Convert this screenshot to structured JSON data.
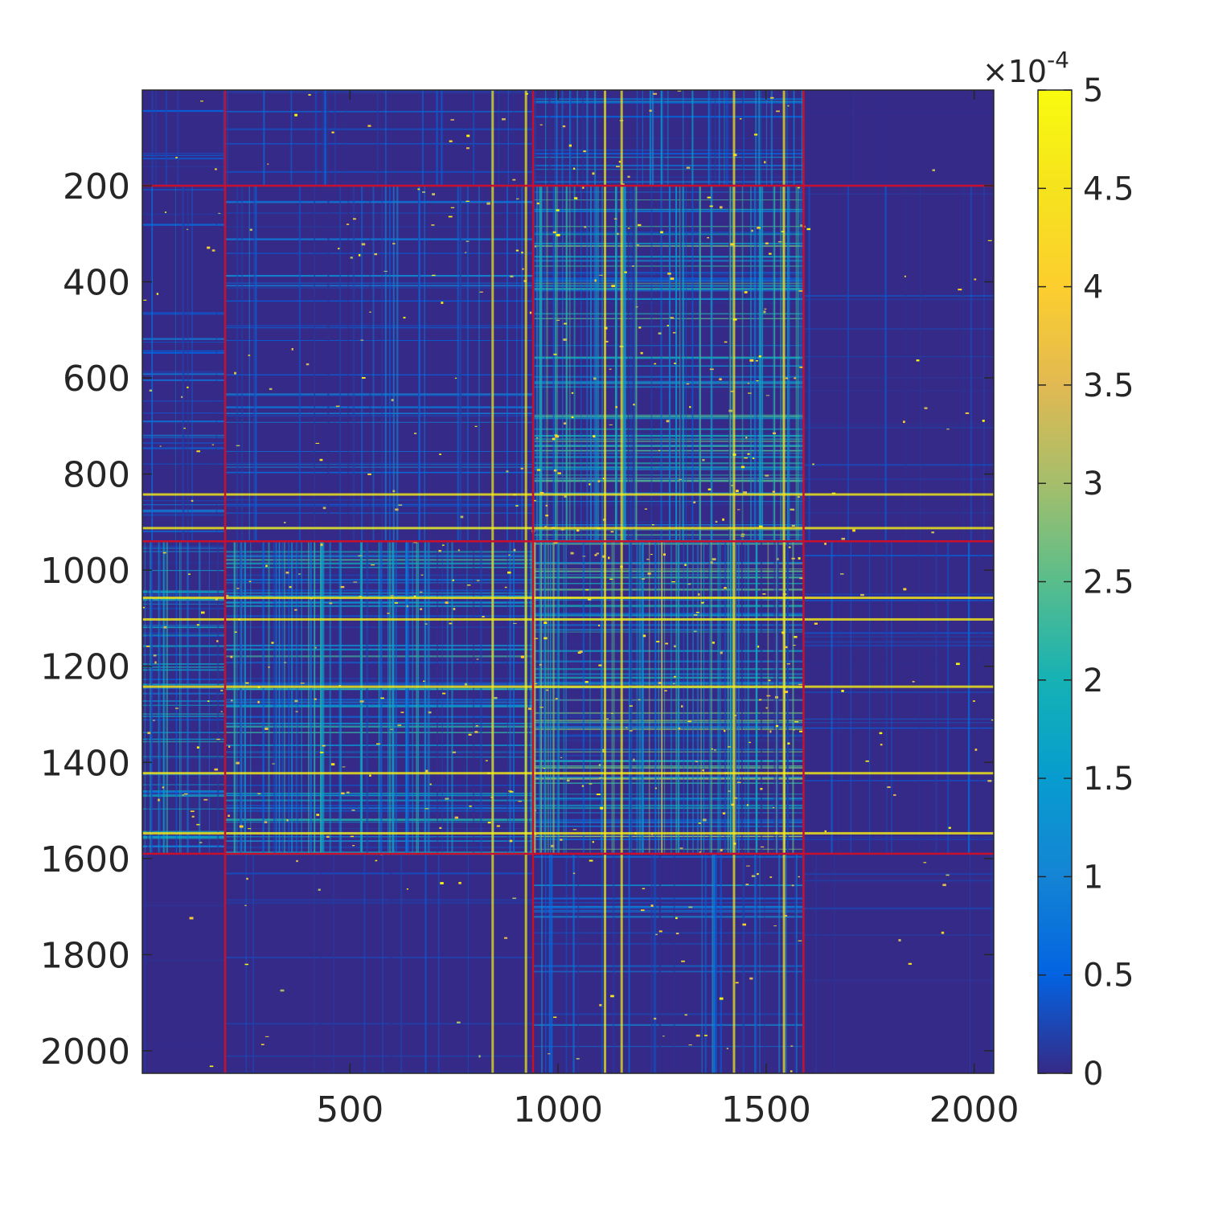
{
  "chart_data": {
    "type": "heatmap",
    "title": "",
    "xlabel": "",
    "ylabel": "",
    "matrix_size": [
      2047,
      2047
    ],
    "xlim": [
      1,
      2047
    ],
    "ylim": [
      1,
      2047
    ],
    "y_direction": "reversed",
    "x_ticks": [
      500,
      1000,
      1500,
      2000
    ],
    "x_tick_labels": [
      "500",
      "1000",
      "1500",
      "2000"
    ],
    "y_ticks": [
      200,
      400,
      600,
      800,
      1000,
      1200,
      1400,
      1600,
      1800,
      2000
    ],
    "y_tick_labels": [
      "200",
      "400",
      "600",
      "800",
      "1000",
      "1200",
      "1400",
      "1600",
      "1800",
      "2000"
    ],
    "colorbar": {
      "colormap": "parula",
      "clim": [
        0,
        5
      ],
      "ticks": [
        0,
        0.5,
        1,
        1.5,
        2,
        2.5,
        3,
        3.5,
        4,
        4.5,
        5
      ],
      "tick_labels": [
        "0",
        "0.5",
        "1",
        "1.5",
        "2",
        "2.5",
        "3",
        "3.5",
        "4",
        "4.5",
        "5"
      ],
      "multiplier_base": "10",
      "multiplier_exponent": "-4",
      "multiplier_sign": "×"
    },
    "block_boundaries": [
      200,
      940,
      1590
    ],
    "boundary_color": "#c8102e",
    "blocks": [
      {
        "rows": [
          1,
          200
        ],
        "cols": [
          1,
          200
        ],
        "level": 0.35
      },
      {
        "rows": [
          1,
          200
        ],
        "cols": [
          200,
          940
        ],
        "level": 0.45
      },
      {
        "rows": [
          1,
          200
        ],
        "cols": [
          940,
          1590
        ],
        "level": 0.9
      },
      {
        "rows": [
          1,
          200
        ],
        "cols": [
          1590,
          2047
        ],
        "level": 0.05
      },
      {
        "rows": [
          200,
          940
        ],
        "cols": [
          1,
          200
        ],
        "level": 0.55
      },
      {
        "rows": [
          200,
          940
        ],
        "cols": [
          200,
          940
        ],
        "level": 0.6
      },
      {
        "rows": [
          200,
          940
        ],
        "cols": [
          940,
          1590
        ],
        "level": 1.5
      },
      {
        "rows": [
          200,
          940
        ],
        "cols": [
          1590,
          2047
        ],
        "level": 0.25
      },
      {
        "rows": [
          940,
          1590
        ],
        "cols": [
          1,
          200
        ],
        "level": 1.2
      },
      {
        "rows": [
          940,
          1590
        ],
        "cols": [
          200,
          940
        ],
        "level": 1.3
      },
      {
        "rows": [
          940,
          1590
        ],
        "cols": [
          940,
          1590
        ],
        "level": 1.7
      },
      {
        "rows": [
          940,
          1590
        ],
        "cols": [
          1590,
          2047
        ],
        "level": 0.35
      },
      {
        "rows": [
          1590,
          2047
        ],
        "cols": [
          1,
          200
        ],
        "level": 0.1
      },
      {
        "rows": [
          1590,
          2047
        ],
        "cols": [
          200,
          940
        ],
        "level": 0.25
      },
      {
        "rows": [
          1590,
          2047
        ],
        "cols": [
          940,
          1590
        ],
        "level": 0.7
      },
      {
        "rows": [
          1590,
          2047
        ],
        "cols": [
          1590,
          2047
        ],
        "level": 0.15
      }
    ],
    "bright_rows": [
      840,
      910,
      1055,
      1100,
      1240,
      1420,
      1545
    ],
    "bright_cols": [
      840,
      920,
      1110,
      1150,
      1420,
      1540
    ]
  }
}
